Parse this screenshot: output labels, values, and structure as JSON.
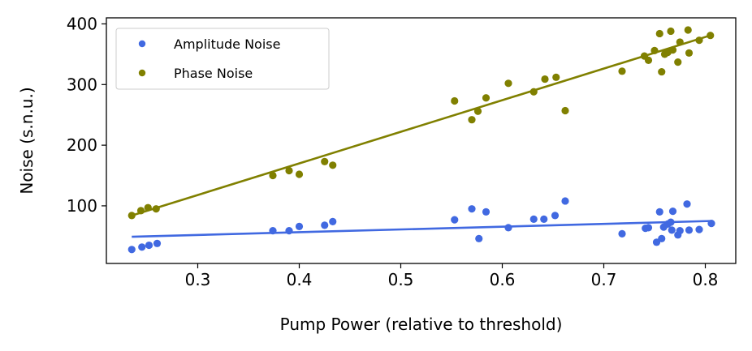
{
  "chart_data": {
    "type": "scatter",
    "title": "",
    "xlabel": "Pump Power (relative to threshold)",
    "ylabel": "Noise (s.n.u.)",
    "xlim": [
      0.21,
      0.83
    ],
    "ylim": [
      5,
      410
    ],
    "xticks": [
      0.3,
      0.4,
      0.5,
      0.6,
      0.7,
      0.8
    ],
    "yticks": [
      100,
      200,
      300,
      400
    ],
    "legend_position": "top-left",
    "series": [
      {
        "name": "Amplitude Noise",
        "color": "#4169e1",
        "x": [
          0.235,
          0.245,
          0.252,
          0.26,
          0.374,
          0.39,
          0.4,
          0.425,
          0.433,
          0.553,
          0.57,
          0.577,
          0.584,
          0.606,
          0.631,
          0.641,
          0.652,
          0.662,
          0.718,
          0.741,
          0.744,
          0.752,
          0.755,
          0.757,
          0.759,
          0.763,
          0.766,
          0.767,
          0.768,
          0.773,
          0.775,
          0.782,
          0.784,
          0.794,
          0.806
        ],
        "y": [
          28,
          32,
          35,
          38,
          59,
          59,
          66,
          68,
          74,
          77,
          95,
          46,
          90,
          64,
          78,
          78,
          84,
          108,
          54,
          63,
          64,
          40,
          90,
          46,
          65,
          70,
          73,
          60,
          91,
          52,
          59,
          103,
          60,
          61,
          71
        ]
      },
      {
        "name": "Phase Noise",
        "color": "#808000",
        "x": [
          0.235,
          0.244,
          0.251,
          0.259,
          0.374,
          0.39,
          0.4,
          0.425,
          0.433,
          0.553,
          0.57,
          0.576,
          0.584,
          0.606,
          0.631,
          0.642,
          0.653,
          0.662,
          0.718,
          0.74,
          0.744,
          0.75,
          0.755,
          0.757,
          0.76,
          0.763,
          0.766,
          0.768,
          0.773,
          0.775,
          0.783,
          0.784,
          0.794,
          0.805
        ],
        "y": [
          84,
          92,
          97,
          95,
          150,
          158,
          152,
          173,
          167,
          273,
          242,
          256,
          278,
          302,
          288,
          309,
          312,
          257,
          322,
          347,
          340,
          356,
          384,
          321,
          350,
          353,
          388,
          357,
          337,
          370,
          390,
          352,
          373,
          381
        ]
      }
    ],
    "fit_lines": [
      {
        "series": "Amplitude Noise",
        "color": "#4169e1",
        "x": [
          0.235,
          0.805
        ],
        "y": [
          49,
          75
        ]
      },
      {
        "series": "Phase Noise",
        "color": "#808000",
        "x": [
          0.235,
          0.805
        ],
        "y": [
          84,
          381
        ]
      }
    ]
  }
}
